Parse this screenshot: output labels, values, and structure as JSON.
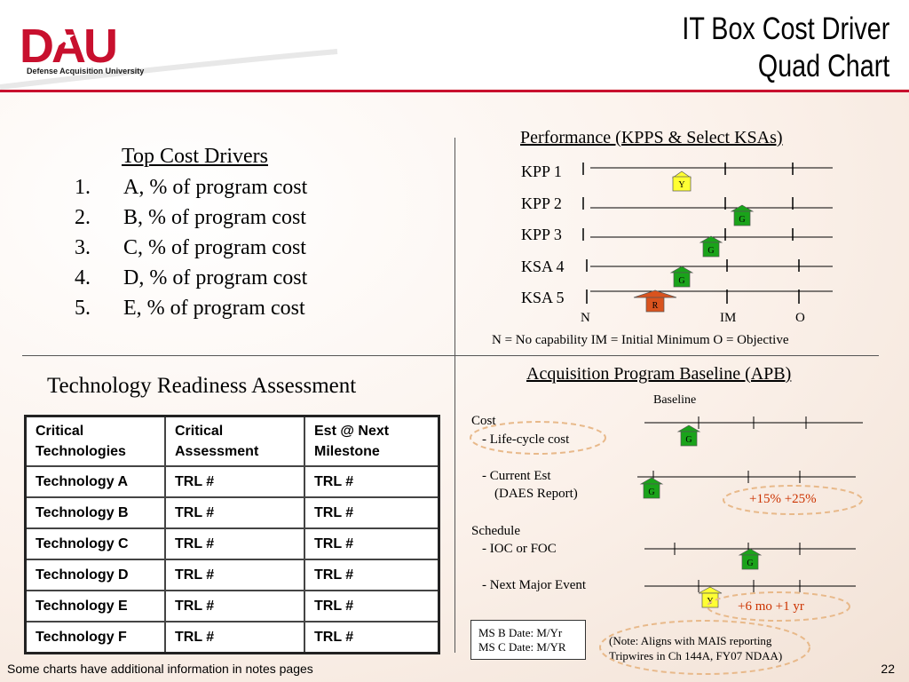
{
  "header": {
    "logo_text": "DAU",
    "logo_subtitle": "Defense Acquisition University",
    "title_line1": "IT Box Cost Driver",
    "title_line2": "Quad Chart"
  },
  "cost_drivers": {
    "title": "Top Cost Drivers",
    "items": [
      {
        "num": "1.",
        "text": "A, % of program cost"
      },
      {
        "num": "2.",
        "text": "B, % of program cost"
      },
      {
        "num": "3.",
        "text": "C, % of program cost"
      },
      {
        "num": "4.",
        "text": "D, % of program cost"
      },
      {
        "num": "5.",
        "text": "E, % of program cost"
      }
    ]
  },
  "tra": {
    "title": "Technology Readiness Assessment",
    "headers": [
      "Critical Technologies",
      "Critical Assessment",
      "Est @ Next Milestone"
    ],
    "rows": [
      [
        "Technology A",
        "TRL #",
        "TRL #"
      ],
      [
        "Technology B",
        "TRL #",
        "TRL #"
      ],
      [
        "Technology C",
        "TRL #",
        "TRL #"
      ],
      [
        "Technology D",
        "TRL #",
        "TRL #"
      ],
      [
        "Technology E",
        "TRL #",
        "TRL #"
      ],
      [
        "Technology F",
        "TRL #",
        "TRL #"
      ]
    ]
  },
  "performance": {
    "title": "Performance (KPPS & Select KSAs)",
    "rows": [
      {
        "label": "KPP 1",
        "status": "Y",
        "color": "#ffff33"
      },
      {
        "label": "KPP 2",
        "status": "G",
        "color": "#1aa31a"
      },
      {
        "label": "KPP 3",
        "status": "G",
        "color": "#1aa31a"
      },
      {
        "label": "KSA 4",
        "status": "G",
        "color": "#1aa31a"
      },
      {
        "label": "KSA 5",
        "status": "R",
        "color": "#d9531e"
      }
    ],
    "scale": [
      "N",
      "IM",
      "O"
    ],
    "legend": "N = No capability   IM = Initial Minimum   O = Objective"
  },
  "apb": {
    "title": "Acquisition Program Baseline (APB)",
    "baseline_label": "Baseline",
    "cost_label": "Cost",
    "lifecycle_label": "- Life-cycle cost",
    "current_est_label": "- Current Est",
    "daes_label": "(DAES Report)",
    "schedule_label": "Schedule",
    "ioc_label": "- IOC or FOC",
    "next_event_label": "- Next Major Event",
    "cost_thresholds": "+15%  +25%",
    "schedule_thresholds": "+6 mo  +1 yr",
    "markers": {
      "lifecycle": "G",
      "current_est": "G",
      "ioc": "G",
      "next_event": "Y"
    },
    "ms_dates": [
      "MS B Date: M/Yr",
      "MS C Date: M/YR"
    ],
    "note_line1": "(Note: Aligns with MAIS reporting",
    "note_line2": "Tripwires in Ch 144A, FY07 NDAA)"
  },
  "footer": {
    "note": "Some charts have additional information in notes pages",
    "page": "22"
  },
  "colors": {
    "green": "#1aa31a",
    "yellow": "#ffff33",
    "red": "#d9531e",
    "brand_red": "#c8102e",
    "threshold_text": "#cc3300"
  }
}
